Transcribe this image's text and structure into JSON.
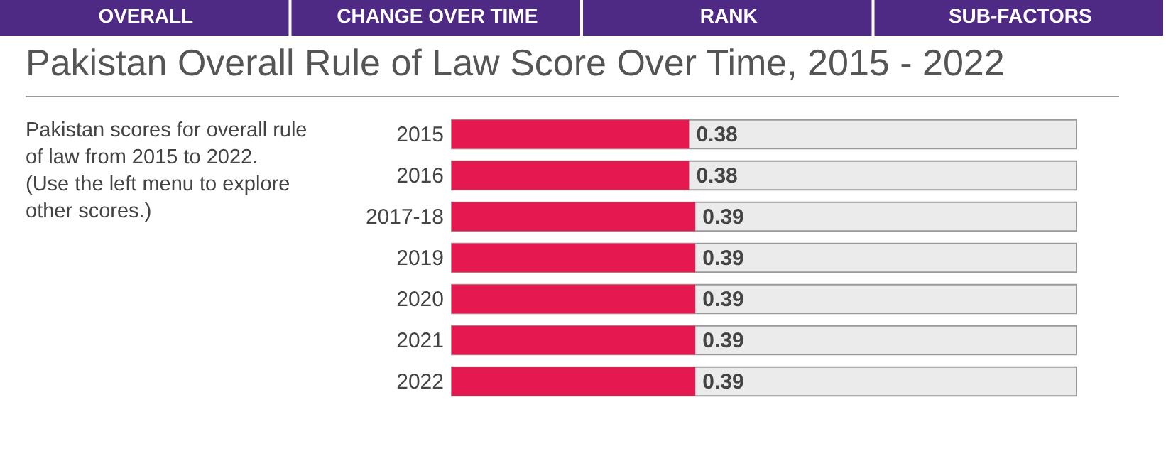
{
  "chart_data": {
    "type": "bar",
    "orientation": "horizontal",
    "title": "Pakistan Overall Rule of Law Score Over Time, 2015 - 2022",
    "subtitle": "Pakistan scores for overall rule of law from 2015 to 2022.",
    "annotations": [
      "OVERALL",
      "CHANGE OVER TIME",
      "RANK",
      "SUB-FACTORS",
      "(Use the left menu to explore other scores.)"
    ],
    "categories": [
      "2015",
      "2016",
      "2017-18",
      "2019",
      "2020",
      "2021",
      "2022"
    ],
    "values": [
      0.38,
      0.38,
      0.39,
      0.39,
      0.39,
      0.39,
      0.39
    ],
    "color": "#e5194f",
    "xlim": [
      0,
      1
    ],
    "data_labels": true
  }
}
